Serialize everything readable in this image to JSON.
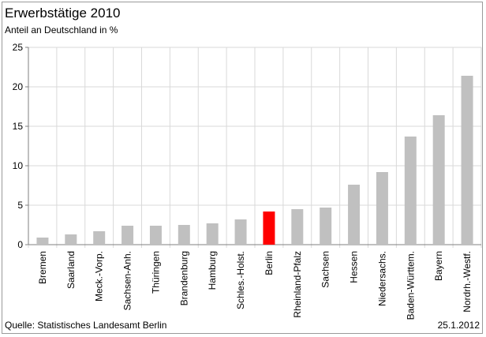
{
  "chart_data": {
    "type": "bar",
    "title": "Erwerbstätige 2010",
    "subtitle": "Anteil an Deutschland in %",
    "categories": [
      "Bremen",
      "Saarland",
      "Meck.-Vorp.",
      "Sachsen-Anh.",
      "Thüringen",
      "Brandenburg",
      "Hamburg",
      "Schles.-Holst.",
      "Berlin",
      "Rheinland-Pfalz",
      "Sachsen",
      "Hessen",
      "Niedersachs.",
      "Baden-Württem.",
      "Bayern",
      "Nordrh.-Westf."
    ],
    "values": [
      0.9,
      1.3,
      1.7,
      2.4,
      2.4,
      2.5,
      2.7,
      3.2,
      4.2,
      4.5,
      4.7,
      7.6,
      9.2,
      13.7,
      16.4,
      21.4
    ],
    "highlight": "Berlin",
    "colors": {
      "bar": "#c0c0c0",
      "highlight": "#ff0000",
      "grid": "#d9d9d9",
      "axis": "#808080"
    },
    "yticks": [
      "0",
      "5",
      "10",
      "15",
      "20",
      "25"
    ],
    "ylim": [
      0,
      25
    ],
    "grid": true,
    "source": "Quelle: Statistisches Landesamt Berlin",
    "date": "25.1.2012"
  }
}
